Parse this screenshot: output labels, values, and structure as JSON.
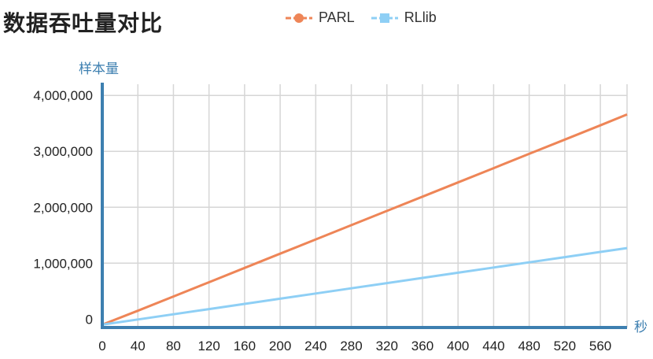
{
  "chart_data": {
    "type": "line",
    "title": "数据吞吐量对比",
    "xlabel": "秒",
    "ylabel": "样本量",
    "x": [
      0,
      40,
      80,
      120,
      160,
      200,
      240,
      280,
      320,
      360,
      400,
      440,
      480,
      520,
      560,
      590
    ],
    "xlim": [
      0,
      590
    ],
    "ylim": [
      -150000,
      4200000
    ],
    "xticks": [
      "0",
      "40",
      "80",
      "120",
      "160",
      "200",
      "240",
      "280",
      "320",
      "360",
      "400",
      "440",
      "480",
      "520",
      "560"
    ],
    "yticks": [
      "0",
      "1,000,000",
      "2,000,000",
      "3,000,000",
      "4,000,000"
    ],
    "ytick_values": [
      0,
      1000000,
      2000000,
      3000000,
      4000000
    ],
    "grid": true,
    "legend_position": "top",
    "series": [
      {
        "name": "PARL",
        "color": "#ee8557",
        "marker": "circle",
        "values": [
          -100000,
          150000,
          405000,
          660000,
          915000,
          1170000,
          1425000,
          1680000,
          1935000,
          2190000,
          2445000,
          2700000,
          2955000,
          3210000,
          3465000,
          3660000
        ]
      },
      {
        "name": "RLlib",
        "color": "#8ecff5",
        "marker": "square",
        "values": [
          -100000,
          -7000,
          86000,
          179000,
          272000,
          365000,
          458000,
          551000,
          644000,
          737000,
          830000,
          923000,
          1016000,
          1109000,
          1202000,
          1270000
        ]
      }
    ]
  }
}
